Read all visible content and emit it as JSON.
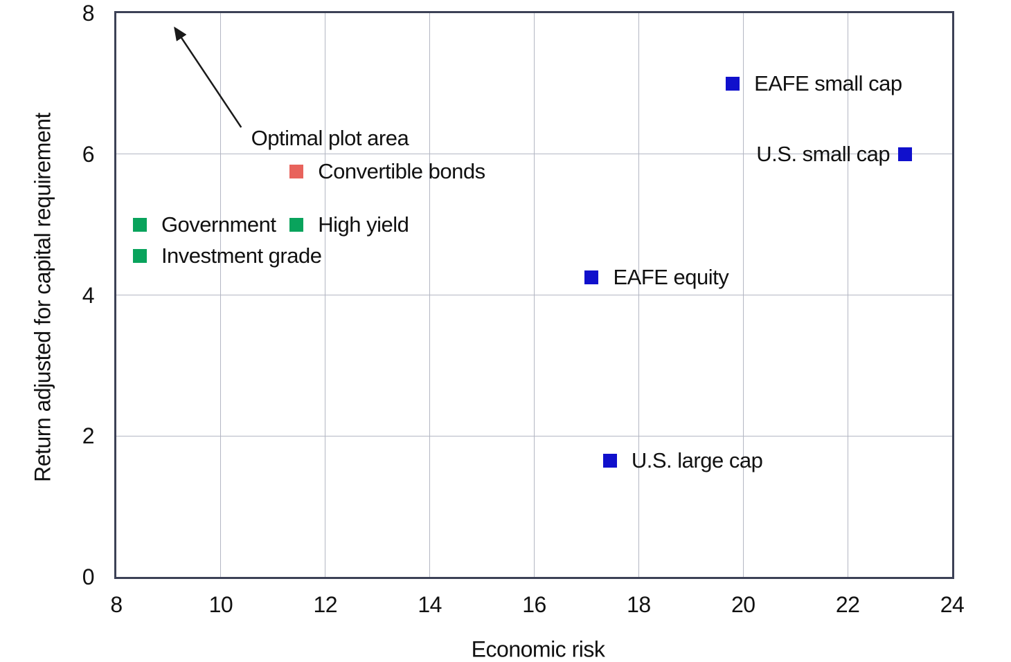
{
  "figure": {
    "background": "#ffffff"
  },
  "chart_data": {
    "type": "scatter",
    "title": "",
    "xlabel": "Economic risk",
    "ylabel": "Return adjusted for capital requirement",
    "xlim": [
      8,
      24
    ],
    "ylim": [
      0,
      8
    ],
    "x_ticks": [
      8,
      10,
      12,
      14,
      16,
      18,
      20,
      22,
      24
    ],
    "y_ticks": [
      0,
      2,
      4,
      6,
      8
    ],
    "grid": true,
    "legend_position": "none",
    "marker_shape": "square",
    "points": [
      {
        "label": "EAFE small cap",
        "x": 19.8,
        "y": 7.0,
        "color": "#1010cc",
        "label_side": "right"
      },
      {
        "label": "U.S. small cap",
        "x": 23.1,
        "y": 6.0,
        "color": "#1010cc",
        "label_side": "left"
      },
      {
        "label": "Convertible bonds",
        "x": 11.45,
        "y": 5.75,
        "color": "#e8635c",
        "label_side": "right"
      },
      {
        "label": "Government",
        "x": 8.45,
        "y": 5.0,
        "color": "#09a35c",
        "label_side": "right"
      },
      {
        "label": "High yield",
        "x": 11.45,
        "y": 5.0,
        "color": "#09a35c",
        "label_side": "right"
      },
      {
        "label": "Investment grade",
        "x": 8.45,
        "y": 4.55,
        "color": "#09a35c",
        "label_side": "right"
      },
      {
        "label": "EAFE equity",
        "x": 17.1,
        "y": 4.25,
        "color": "#1010cc",
        "label_side": "right"
      },
      {
        "label": "U.S. large cap",
        "x": 17.45,
        "y": 1.65,
        "color": "#1010cc",
        "label_side": "right"
      }
    ],
    "annotation": {
      "text": "Optimal plot area",
      "text_pos": {
        "x": 10.58,
        "y": 6.22
      },
      "arrow_tail": {
        "x": 10.39,
        "y": 6.38
      },
      "arrow_tip": {
        "x": 9.12,
        "y": 7.79
      }
    },
    "colors": {
      "axis_frame": "#3c4156",
      "gridline": "#b3b6c3",
      "text": "#111111",
      "blue_marker": "#1010cc",
      "green_marker": "#09a35c",
      "red_marker": "#e8635c",
      "arrow": "#1a1a1a"
    }
  }
}
